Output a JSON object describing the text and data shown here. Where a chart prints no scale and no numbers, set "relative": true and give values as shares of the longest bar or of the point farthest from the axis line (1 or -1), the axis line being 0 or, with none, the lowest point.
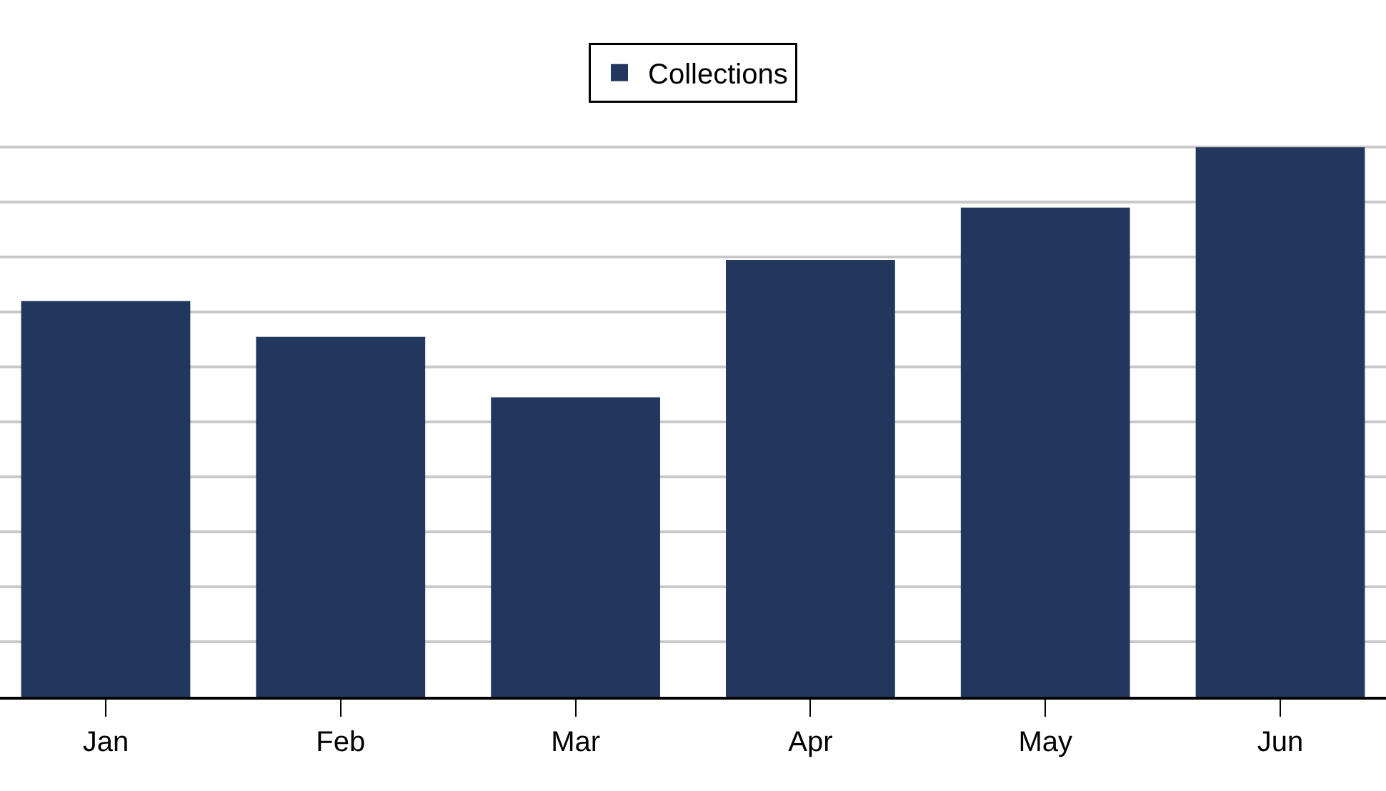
{
  "chart_data": {
    "type": "bar",
    "relative": true,
    "categories": [
      "Jan",
      "Feb",
      "Mar",
      "Apr",
      "May",
      "Jun"
    ],
    "series": [
      {
        "name": "Collections",
        "color": "#22375e",
        "values": [
          0.72,
          0.655,
          0.545,
          0.795,
          0.89,
          1
        ]
      }
    ],
    "grid": "y",
    "legend": "top"
  }
}
